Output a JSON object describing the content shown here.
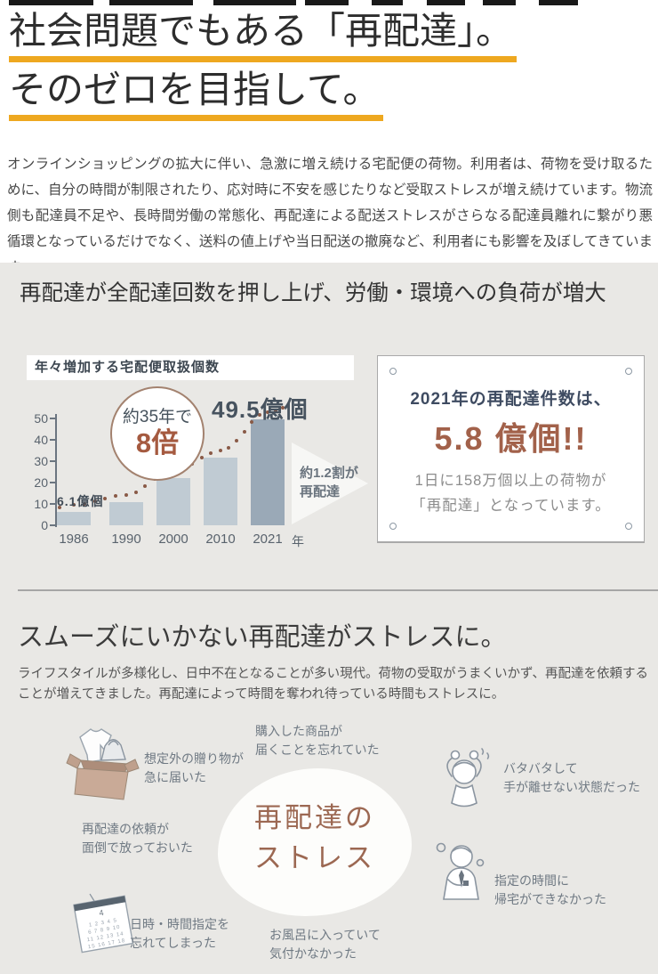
{
  "colors": {
    "underline_accent": "#eea820",
    "section_background": "#e9e8e5",
    "bar": "#c0cbd3",
    "bar_highlight": "#9aa9b7",
    "trend_dots": "#8a5a47",
    "terracotta_accent": "#a2614a",
    "navy_text": "#3e4b61"
  },
  "top_fragments": [
    [
      10,
      95
    ],
    [
      123,
      94
    ],
    [
      240,
      93
    ],
    [
      343,
      49
    ],
    [
      418,
      35
    ],
    [
      480,
      43
    ],
    [
      543,
      37
    ],
    [
      606,
      44
    ]
  ],
  "hero": {
    "title_line1": "社会問題でもある「再配達」。",
    "title_line2": "そのゼロを目指して。",
    "intro": "オンラインショッピングの拡大に伴い、急激に増え続ける宅配便の荷物。利用者は、荷物を受け取るために、自分の時間が制限されたり、応対時に不安を感じたりなど受取ストレスが増え続けています。物流側も配達員不足や、長時間労働の常態化、再配達による配送ストレスがさらなる配達員離れに繋がり悪循環となっているだけでなく、送料の値上げや当日配送の撤廃など、利用者にも影響を及ぼしてきています。"
  },
  "stats_section": {
    "heading": "再配達が全配達回数を押し上げ、労働・環境への負荷が増大",
    "card": {
      "line1": "2021年の再配達件数は、",
      "big": "5.8 億個!!",
      "desc1": "1日に158万個以上の荷物が",
      "desc2": "「再配達」となっています。"
    }
  },
  "chart_data": {
    "type": "bar",
    "title": "年々増加する宅配便取扱個数",
    "categories": [
      "1986",
      "1990",
      "2000",
      "2010",
      "2021"
    ],
    "values": [
      6.1,
      11,
      22,
      31.5,
      49.5
    ],
    "unit": "億個",
    "x_axis_suffix": "年",
    "ylim": [
      0,
      50
    ],
    "yticks": [
      0,
      10,
      20,
      30,
      40,
      50
    ],
    "grid": false,
    "legend": "none",
    "bar_color": "#c0cbd3",
    "highlight_index": 4,
    "highlight_color": "#9aa9b7",
    "annotations": {
      "first_bar_label": "6.1億個",
      "last_bar_label": "49.5億個",
      "badge_line1": "約35年で",
      "badge_line2": "8倍",
      "arrow_line1": "約1.2割が",
      "arrow_line2": "再配達"
    }
  },
  "stress_section": {
    "heading": "スムーズにいかない再配達がストレスに。",
    "desc": "ライフスタイルが多様化し、日中不在となることが多い現代。荷物の受取がうまくいかず、再配達を依頼することが増えてきました。再配達によって時間を奪われ待っている時間もストレスに。",
    "center_line1": "再配達の",
    "center_line2": "ストレス",
    "items": [
      {
        "id": "purchase",
        "line1": "購入した商品が",
        "line2": "届くことを忘れていた"
      },
      {
        "id": "gift",
        "line1": "想定外の贈り物が",
        "line2": "急に届いた"
      },
      {
        "id": "request",
        "line1": "再配達の依頼が",
        "line2": "面倒で放っておいた"
      },
      {
        "id": "datetime",
        "line1": "日時・時間指定を",
        "line2": "忘れてしまった"
      },
      {
        "id": "bath",
        "line1": "お風呂に入っていて",
        "line2": "気付かなかった"
      },
      {
        "id": "busy",
        "line1": "バタバタして",
        "line2": "手が離せない状態だった"
      },
      {
        "id": "late",
        "line1": "指定の時間に",
        "line2": "帰宅ができなかった"
      }
    ]
  }
}
